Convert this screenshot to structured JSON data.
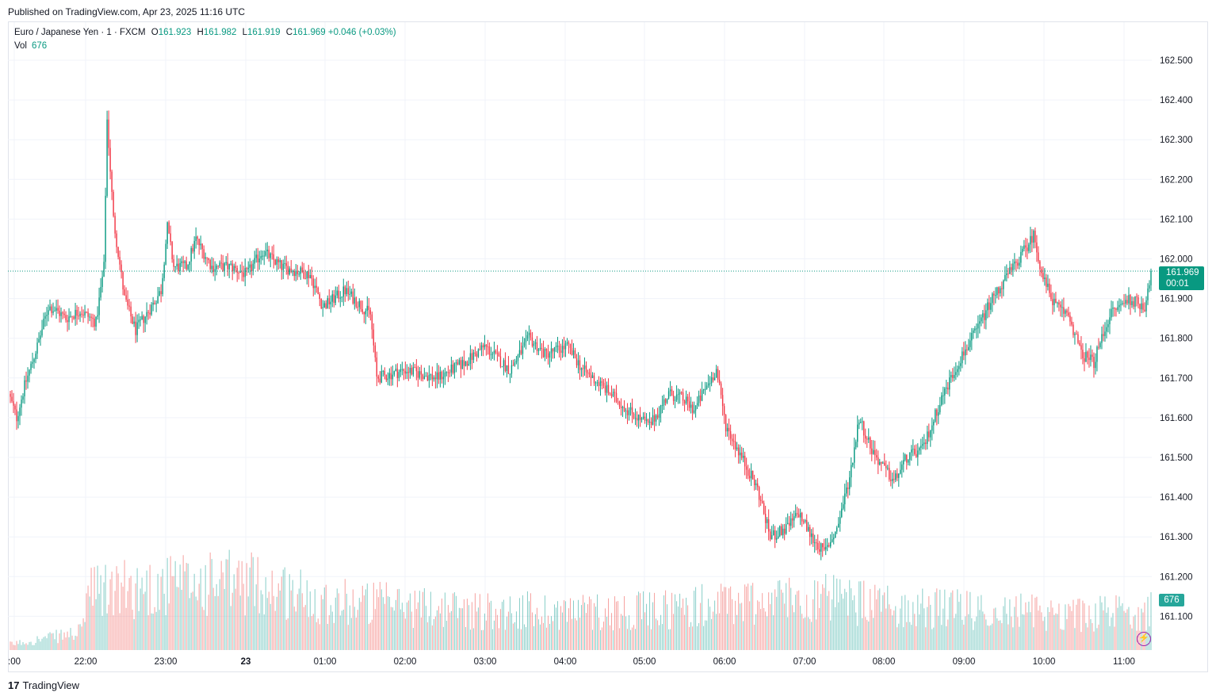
{
  "header": {
    "published_text": "Published on TradingView.com, Apr 23, 2025 11:16 UTC"
  },
  "legend": {
    "symbol": "Euro / Japanese Yen · 1 · FXCM",
    "open_label": "O",
    "open": "161.923",
    "high_label": "H",
    "high": "161.982",
    "low_label": "L",
    "low": "161.919",
    "close_label": "C",
    "close": "161.969",
    "change": "+0.046 (+0.03%)",
    "vol_label": "Vol",
    "vol_value": "676"
  },
  "price_tag": {
    "price": "161.969",
    "countdown": "00:01"
  },
  "vol_tag": "676",
  "brand": {
    "mark": "17",
    "name": "TradingView"
  },
  "colors": {
    "up": "#089981",
    "down": "#f23645",
    "vol_up": "#26a69a",
    "vol_down": "#ef5350",
    "grid": "#f0f3fa"
  },
  "icons": [
    "lightning-icon",
    "tradingview-logo-icon"
  ],
  "chart_data": {
    "type": "candlestick",
    "title": "Euro / Japanese Yen · 1 · FXCM",
    "y_axis": {
      "min": 161.02,
      "max": 162.56,
      "ticks": [
        "162.500",
        "162.400",
        "162.300",
        "162.200",
        "162.100",
        "162.000",
        "161.900",
        "161.800",
        "161.700",
        "161.600",
        "161.500",
        "161.400",
        "161.300",
        "161.200",
        "161.100"
      ]
    },
    "x_axis": {
      "ticks": [
        ":00",
        "22:00",
        "23:00",
        "23",
        "01:00",
        "02:00",
        "03:00",
        "04:00",
        "05:00",
        "06:00",
        "07:00",
        "08:00",
        "09:00",
        "10:00",
        "11:00"
      ]
    },
    "grid": true,
    "last_price": 161.969,
    "price_path": [
      [
        0,
        161.66
      ],
      [
        5,
        161.6
      ],
      [
        10,
        161.68
      ],
      [
        18,
        161.78
      ],
      [
        25,
        161.88
      ],
      [
        30,
        161.87
      ],
      [
        36,
        161.85
      ],
      [
        45,
        161.87
      ],
      [
        55,
        161.84
      ],
      [
        60,
        161.98
      ],
      [
        62,
        162.35
      ],
      [
        66,
        162.1
      ],
      [
        73,
        161.9
      ],
      [
        80,
        161.82
      ],
      [
        90,
        161.88
      ],
      [
        96,
        161.92
      ],
      [
        100,
        162.08
      ],
      [
        104,
        161.98
      ],
      [
        112,
        161.98
      ],
      [
        118,
        162.05
      ],
      [
        128,
        161.98
      ],
      [
        140,
        161.98
      ],
      [
        150,
        161.96
      ],
      [
        160,
        162.02
      ],
      [
        172,
        161.98
      ],
      [
        190,
        161.96
      ],
      [
        198,
        161.88
      ],
      [
        212,
        161.92
      ],
      [
        228,
        161.86
      ],
      [
        232,
        161.7
      ],
      [
        250,
        161.72
      ],
      [
        270,
        161.7
      ],
      [
        288,
        161.74
      ],
      [
        300,
        161.78
      ],
      [
        316,
        161.72
      ],
      [
        328,
        161.8
      ],
      [
        338,
        161.76
      ],
      [
        352,
        161.78
      ],
      [
        362,
        161.72
      ],
      [
        374,
        161.68
      ],
      [
        390,
        161.62
      ],
      [
        404,
        161.58
      ],
      [
        416,
        161.66
      ],
      [
        424,
        161.65
      ],
      [
        432,
        161.62
      ],
      [
        440,
        161.68
      ],
      [
        446,
        161.72
      ],
      [
        452,
        161.58
      ],
      [
        462,
        161.5
      ],
      [
        472,
        161.42
      ],
      [
        480,
        161.3
      ],
      [
        490,
        161.32
      ],
      [
        498,
        161.36
      ],
      [
        506,
        161.3
      ],
      [
        514,
        161.26
      ],
      [
        522,
        161.32
      ],
      [
        530,
        161.45
      ],
      [
        536,
        161.6
      ],
      [
        544,
        161.52
      ],
      [
        550,
        161.48
      ],
      [
        558,
        161.44
      ],
      [
        566,
        161.5
      ],
      [
        576,
        161.52
      ],
      [
        588,
        161.65
      ],
      [
        600,
        161.75
      ],
      [
        610,
        161.82
      ],
      [
        620,
        161.9
      ],
      [
        630,
        161.96
      ],
      [
        640,
        162.02
      ],
      [
        646,
        162.06
      ],
      [
        652,
        161.95
      ],
      [
        660,
        161.88
      ],
      [
        668,
        161.86
      ],
      [
        676,
        161.76
      ],
      [
        684,
        161.74
      ],
      [
        694,
        161.86
      ],
      [
        706,
        161.9
      ],
      [
        716,
        161.88
      ],
      [
        720,
        161.97
      ]
    ],
    "volume_path": [
      [
        0,
        8
      ],
      [
        45,
        25
      ],
      [
        48,
        80
      ],
      [
        100,
        90
      ],
      [
        150,
        95
      ],
      [
        200,
        70
      ],
      [
        300,
        55
      ],
      [
        400,
        55
      ],
      [
        450,
        65
      ],
      [
        500,
        75
      ],
      [
        560,
        60
      ],
      [
        620,
        55
      ],
      [
        680,
        50
      ],
      [
        720,
        55
      ]
    ]
  }
}
